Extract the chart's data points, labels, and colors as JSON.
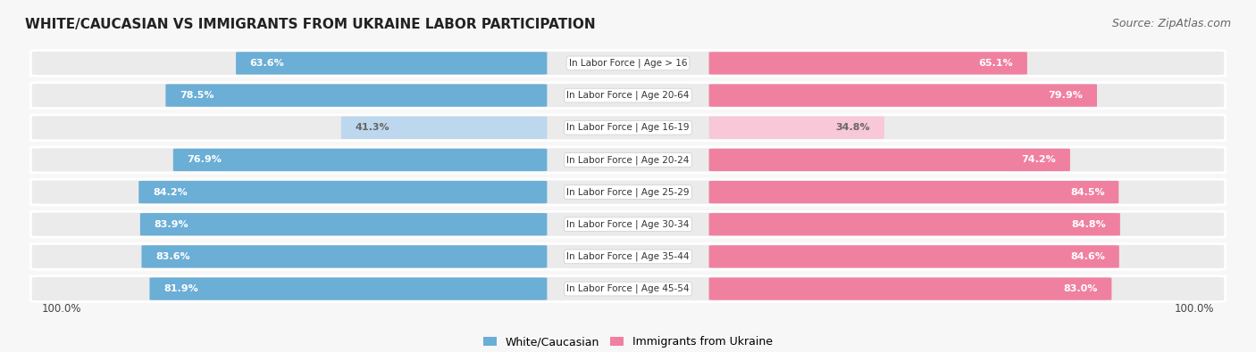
{
  "title": "WHITE/CAUCASIAN VS IMMIGRANTS FROM UKRAINE LABOR PARTICIPATION",
  "source": "Source: ZipAtlas.com",
  "categories": [
    "In Labor Force | Age > 16",
    "In Labor Force | Age 20-64",
    "In Labor Force | Age 16-19",
    "In Labor Force | Age 20-24",
    "In Labor Force | Age 25-29",
    "In Labor Force | Age 30-34",
    "In Labor Force | Age 35-44",
    "In Labor Force | Age 45-54"
  ],
  "white_values": [
    63.6,
    78.5,
    41.3,
    76.9,
    84.2,
    83.9,
    83.6,
    81.9
  ],
  "immigrant_values": [
    65.1,
    79.9,
    34.8,
    74.2,
    84.5,
    84.8,
    84.6,
    83.0
  ],
  "white_color": "#6BAED6",
  "white_color_light": "#BDD7EE",
  "immigrant_color": "#F080A0",
  "immigrant_color_light": "#F8C8D8",
  "row_bg_color": "#EBEBEB",
  "background_color": "#F7F7F7",
  "legend_label_white": "White/Caucasian",
  "legend_label_immigrant": "Immigrants from Ukraine",
  "bottom_label": "100.0%",
  "title_fontsize": 11,
  "source_fontsize": 9,
  "label_fontsize": 7.5,
  "value_fontsize": 8.0,
  "legend_fontsize": 9
}
